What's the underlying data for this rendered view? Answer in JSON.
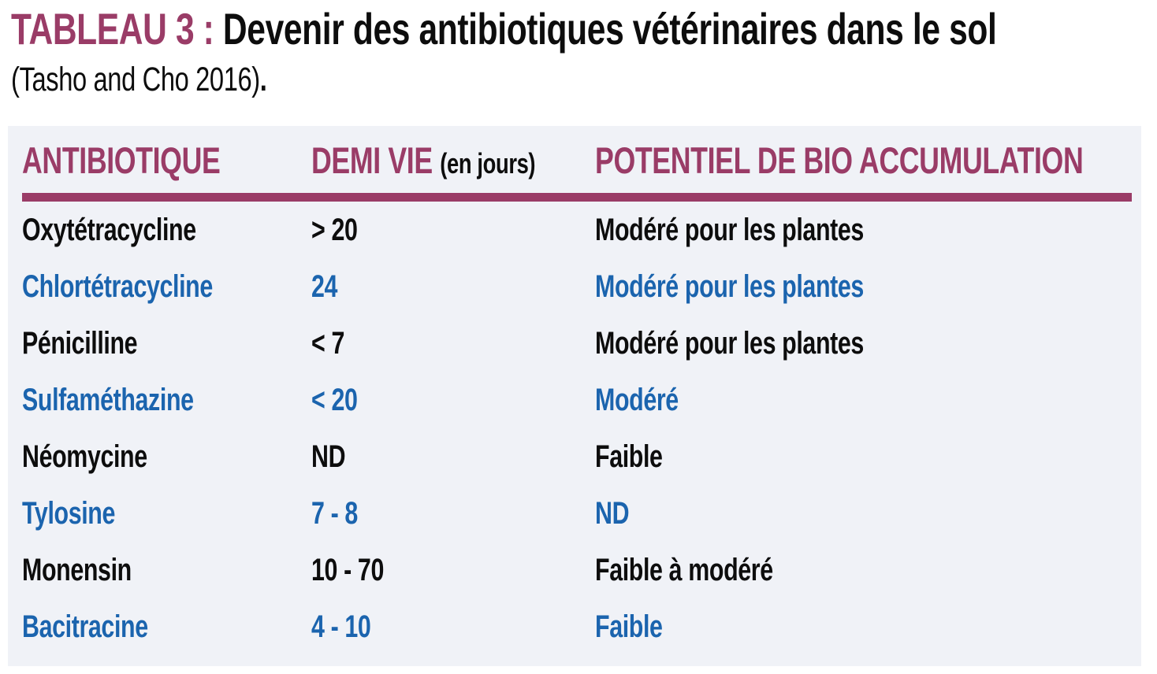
{
  "title": {
    "label": "TABLEAU 3 :",
    "text": " Devenir des antibiotiques vétérinaires dans le sol",
    "source": "(Tasho and Cho 2016)",
    "source_suffix": "."
  },
  "table": {
    "headers": {
      "antibiotique": "ANTIBIOTIQUE",
      "demi_vie": "DEMI VIE ",
      "demi_vie_unit": "(en jours)",
      "potentiel": "POTENTIEL DE BIO ACCUMULATION"
    },
    "rows": [
      {
        "antibiotique": "Oxytétracycline",
        "demi_vie": "> 20",
        "potentiel": "Modéré pour les plantes",
        "text_color": "black"
      },
      {
        "antibiotique": "Chlortétracycline",
        "demi_vie": "24",
        "potentiel": "Modéré pour les plantes",
        "text_color": "blue"
      },
      {
        "antibiotique": "Pénicilline",
        "demi_vie": "< 7",
        "potentiel": "Modéré pour les plantes",
        "text_color": "black"
      },
      {
        "antibiotique": "Sulfaméthazine",
        "demi_vie": "< 20",
        "potentiel": "Modéré",
        "text_color": "blue"
      },
      {
        "antibiotique": "Néomycine",
        "demi_vie": "ND",
        "potentiel": "Faible",
        "text_color": "black"
      },
      {
        "antibiotique": "Tylosine",
        "demi_vie": "7 - 8",
        "potentiel": "ND",
        "text_color": "blue"
      },
      {
        "antibiotique": "Monensin",
        "demi_vie": "10 - 70",
        "potentiel": "Faible à modéré",
        "text_color": "black"
      },
      {
        "antibiotique": "Bacitracine",
        "demi_vie": "4 - 10",
        "potentiel": "Faible",
        "text_color": "blue"
      }
    ]
  },
  "colors": {
    "maroon": "#9a3c67",
    "blue": "#1b64ae",
    "black": "#0d0d0d",
    "panel_bg": "#f0f2f7",
    "page_bg": "#ffffff"
  },
  "chart_data": {
    "type": "table",
    "title": "TABLEAU 3 : Devenir des antibiotiques vétérinaires dans le sol (Tasho and Cho 2016).",
    "columns": [
      "ANTIBIOTIQUE",
      "DEMI VIE (en jours)",
      "POTENTIEL DE BIO ACCUMULATION"
    ],
    "rows": [
      [
        "Oxytétracycline",
        "> 20",
        "Modéré pour les plantes"
      ],
      [
        "Chlortétracycline",
        "24",
        "Modéré pour les plantes"
      ],
      [
        "Pénicilline",
        "< 7",
        "Modéré pour les plantes"
      ],
      [
        "Sulfaméthazine",
        "< 20",
        "Modéré"
      ],
      [
        "Néomycine",
        "ND",
        "Faible"
      ],
      [
        "Tylosine",
        "7 - 8",
        "ND"
      ],
      [
        "Monensin",
        "10 - 70",
        "Faible à modéré"
      ],
      [
        "Bacitracine",
        "4 - 10",
        "Faible"
      ]
    ]
  }
}
